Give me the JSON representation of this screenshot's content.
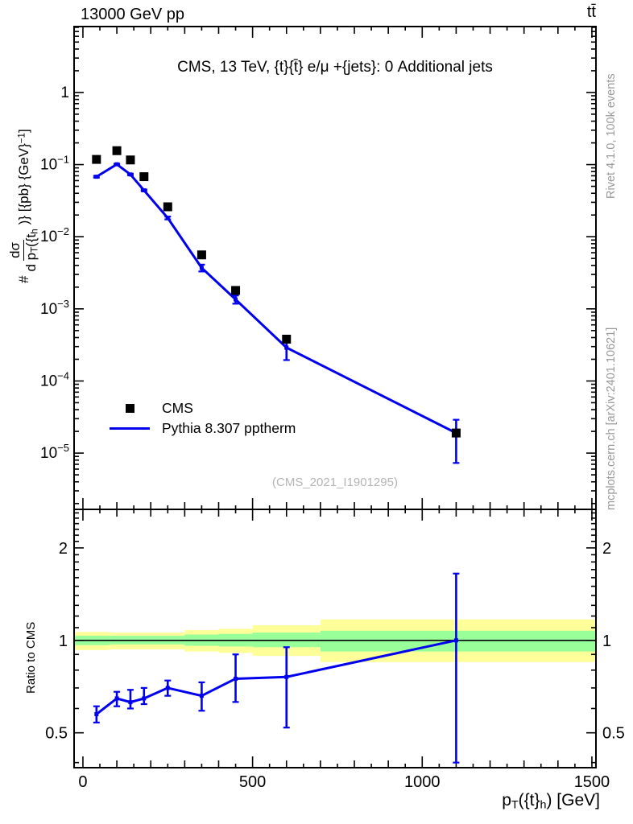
{
  "header": {
    "left": "13000 GeV pp",
    "right": "tt̄"
  },
  "title": "CMS, 13 TeV, {t}{t̄} e/μ +{jets}: 0 Additional jets",
  "watermark": "(CMS_2021_I1901295)",
  "side_notes": {
    "top": "Rivet 4.1.0, 100k events",
    "bottom": "mcplots.cern.ch [arXiv:2401.10621]"
  },
  "legend": {
    "entries": [
      {
        "label": "CMS",
        "marker": "black-square"
      },
      {
        "label": "Pythia 8.307 pptherm",
        "marker": "blue-line"
      }
    ]
  },
  "axis_labels": {
    "x": {
      "base": "p",
      "sub1": "T",
      "mid": "({t}",
      "sub2": "h",
      "end": ") [GeV]"
    },
    "y": {
      "prefix": "#",
      "frac_num": "dσ",
      "frac_den_d": "d p",
      "frac_den_sub_T": "T",
      "frac_den_open": "({t",
      "frac_den_sub_h": "h",
      "suffix": ")} [{pb} {GeV}",
      "sup": "−1",
      "suffix_end": "]"
    },
    "ratio": "Ratio to CMS"
  },
  "colors": {
    "line_blue": "#0000ee",
    "marker_black": "#000000",
    "band_yellow": "#ffff99",
    "band_green": "#99ff99",
    "gray_text": "#999999",
    "watermark_gray": "#b4b4b4"
  },
  "chart_data": {
    "type": "line",
    "title": "CMS, 13 TeV, {t}{t̄} e/μ +{jets}: 0 Additional jets",
    "xlabel": "p_T({t}_h) [GeV]",
    "ylabel": "# dσ/d p_T({t}_h)} [{pb} {GeV}^-1]",
    "xlim": [
      -26,
      1512
    ],
    "x_major_ticks": [
      0,
      500,
      1000,
      1500
    ],
    "x_minor_step": 50,
    "x_medium_step": 100,
    "main": {
      "ylog": true,
      "ylim": [
        1.66e-06,
        8.2
      ],
      "ytick_exponents": [
        0,
        -1,
        -2,
        -3,
        -4,
        -5
      ],
      "series": [
        {
          "name": "CMS",
          "type": "scatter",
          "marker": "square",
          "color": "#000000",
          "x": [
            40,
            100,
            140,
            180,
            250,
            350,
            450,
            600,
            1100
          ],
          "y": [
            0.118,
            0.156,
            0.116,
            0.068,
            0.026,
            0.0056,
            0.0018,
            0.00038,
            1.9e-05
          ]
        },
        {
          "name": "Pythia 8.307 pptherm",
          "type": "line",
          "color": "#0000ee",
          "x": [
            40,
            100,
            140,
            180,
            250,
            350,
            450,
            600,
            1100
          ],
          "y": [
            0.0679,
            0.101,
            0.073,
            0.044,
            0.0182,
            0.0037,
            0.00135,
            0.00029,
            1.9e-05
          ],
          "y_lo": [
            0.066,
            0.099,
            0.0713,
            0.0428,
            0.0174,
            0.0033,
            0.00118,
            0.000195,
            7.3e-06
          ],
          "y_hi": [
            0.0698,
            0.103,
            0.0748,
            0.0452,
            0.019,
            0.0041,
            0.00153,
            0.00034,
            2.9e-05
          ]
        }
      ]
    },
    "ratio": {
      "ylabel": "Ratio to CMS",
      "ylog": true,
      "ylim": [
        0.385,
        2.67
      ],
      "yticks": [
        2,
        1,
        0.5
      ],
      "ytick_labels": [
        "2",
        "1",
        "0.5"
      ],
      "reference": 1,
      "x": [
        40,
        100,
        140,
        180,
        250,
        350,
        450,
        600,
        1100
      ],
      "y": [
        0.575,
        0.647,
        0.629,
        0.647,
        0.7,
        0.66,
        0.75,
        0.76,
        1.0
      ],
      "y_lo": [
        0.54,
        0.61,
        0.6,
        0.62,
        0.66,
        0.59,
        0.63,
        0.52,
        0.4
      ],
      "y_hi": [
        0.61,
        0.68,
        0.69,
        0.7,
        0.74,
        0.73,
        0.9,
        0.95,
        1.65
      ],
      "bands": [
        {
          "x0": 0,
          "x1": 80,
          "yellow": [
            0.93,
            1.065
          ],
          "green": [
            0.965,
            1.035
          ]
        },
        {
          "x0": 80,
          "x1": 300,
          "yellow": [
            0.935,
            1.06
          ],
          "green": [
            0.97,
            1.035
          ]
        },
        {
          "x0": 300,
          "x1": 400,
          "yellow": [
            0.92,
            1.08
          ],
          "green": [
            0.96,
            1.045
          ]
        },
        {
          "x0": 400,
          "x1": 500,
          "yellow": [
            0.91,
            1.09
          ],
          "green": [
            0.955,
            1.05
          ]
        },
        {
          "x0": 500,
          "x1": 700,
          "yellow": [
            0.89,
            1.12
          ],
          "green": [
            0.95,
            1.06
          ]
        },
        {
          "x0": 700,
          "x1": 1500,
          "yellow": [
            0.85,
            1.17
          ],
          "green": [
            0.92,
            1.075
          ]
        }
      ]
    }
  }
}
